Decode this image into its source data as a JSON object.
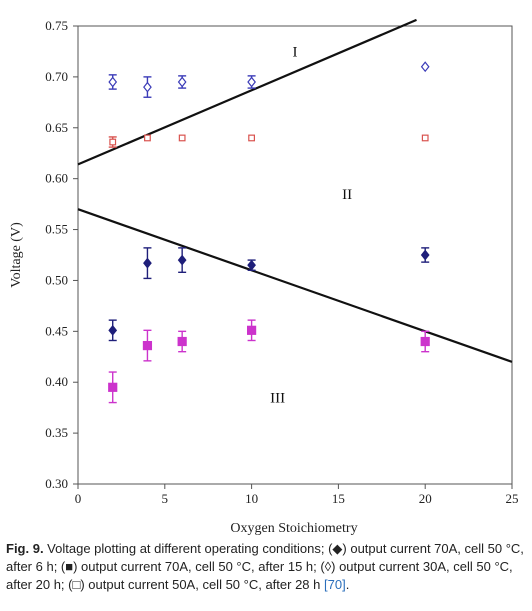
{
  "chart_data": {
    "type": "scatter",
    "xlabel": "Oxygen Stoichiometry",
    "ylabel": "Voltage (V)",
    "xlim": [
      0,
      25
    ],
    "ylim": [
      0.3,
      0.75
    ],
    "xticks": [
      "0",
      "5",
      "10",
      "15",
      "20",
      "25"
    ],
    "yticks": [
      "0.30",
      "0.35",
      "0.40",
      "0.45",
      "0.50",
      "0.55",
      "0.60",
      "0.65",
      "0.70",
      "0.75"
    ],
    "grid": false,
    "series": [
      {
        "name": "output current 70A, cell 50 °C, after 6 h",
        "marker": "diamond-filled",
        "color": "#1f1f7a",
        "points": [
          {
            "x": 2,
            "y": 0.451,
            "err": 0.01
          },
          {
            "x": 4,
            "y": 0.517,
            "err": 0.015
          },
          {
            "x": 6,
            "y": 0.52,
            "err": 0.012
          },
          {
            "x": 10,
            "y": 0.515,
            "err": 0.005
          },
          {
            "x": 20,
            "y": 0.525,
            "err": 0.007
          }
        ]
      },
      {
        "name": "output current 70A, cell 50 °C, after 15 h",
        "marker": "square-filled",
        "color": "#cc33cc",
        "points": [
          {
            "x": 2,
            "y": 0.395,
            "err": 0.015
          },
          {
            "x": 4,
            "y": 0.436,
            "err": 0.015
          },
          {
            "x": 6,
            "y": 0.44,
            "err": 0.01
          },
          {
            "x": 10,
            "y": 0.451,
            "err": 0.01
          },
          {
            "x": 20,
            "y": 0.44,
            "err": 0.01
          }
        ]
      },
      {
        "name": "output current 30A, cell 50 °C, after 20 h",
        "marker": "diamond-open",
        "color": "#3b3bb8",
        "points": [
          {
            "x": 2,
            "y": 0.695,
            "err": 0.007
          },
          {
            "x": 4,
            "y": 0.69,
            "err": 0.01
          },
          {
            "x": 6,
            "y": 0.695,
            "err": 0.006
          },
          {
            "x": 10,
            "y": 0.695,
            "err": 0.006
          },
          {
            "x": 20,
            "y": 0.71,
            "err": 0
          }
        ]
      },
      {
        "name": "output current 50A, cell 50 °C, after 28 h",
        "marker": "square-open",
        "color": "#d9534f",
        "points": [
          {
            "x": 2,
            "y": 0.636,
            "err": 0.005
          },
          {
            "x": 4,
            "y": 0.64,
            "err": 0
          },
          {
            "x": 6,
            "y": 0.64,
            "err": 0
          },
          {
            "x": 10,
            "y": 0.64,
            "err": 0
          },
          {
            "x": 20,
            "y": 0.64,
            "err": 0
          }
        ]
      }
    ],
    "boundary_lines": [
      {
        "from": [
          0,
          0.614
        ],
        "to": [
          19.5,
          0.756
        ]
      },
      {
        "from": [
          0,
          0.57
        ],
        "to": [
          25,
          0.42
        ]
      }
    ],
    "regions": [
      {
        "label": "I",
        "x": 12.5,
        "y": 0.72
      },
      {
        "label": "II",
        "x": 15.5,
        "y": 0.58
      },
      {
        "label": "III",
        "x": 11.5,
        "y": 0.38
      }
    ]
  },
  "caption": {
    "label": "Fig. 9.",
    "text": " Voltage plotting at different operating conditions; (◆) output current 70A, cell 50 °C, after 6 h; (■) output current 70A, cell 50 °C, after 15 h; (◊) output current 30A, cell 50 °C, after 20 h; (□) output current 50A, cell 50 °C, after 28 h ",
    "ref": "[70]",
    "end": "."
  }
}
